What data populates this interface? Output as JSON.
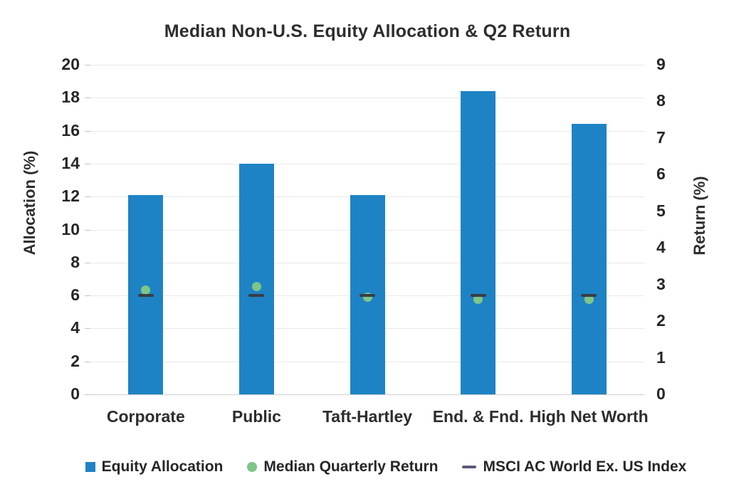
{
  "title": "Median Non-U.S. Equity Allocation & Q2 Return",
  "colors": {
    "bar_blue": "#1E83C5",
    "dot_green": "#7EC687",
    "dash_dark": "#3B3C42",
    "legend_dash_slate": "#5E5A78",
    "gridline": "#e9e9e9",
    "text": "#2d2d2d"
  },
  "chart_data": {
    "type": "bar",
    "title": "Median Non-U.S. Equity Allocation & Q2 Return",
    "categories": [
      "Corporate",
      "Public",
      "Taft-Hartley",
      "End. & Fnd.",
      "High Net Worth"
    ],
    "series": [
      {
        "name": "Equity Allocation",
        "type": "bar",
        "axis": "left",
        "values": [
          12.1,
          14.0,
          12.1,
          18.4,
          16.4
        ],
        "color": "#1E83C5"
      },
      {
        "name": "Median Quarterly Return",
        "type": "point",
        "axis": "right",
        "values": [
          2.85,
          2.95,
          2.65,
          2.6,
          2.6
        ],
        "color": "#7EC687"
      },
      {
        "name": "MSCI AC World Ex. US Index",
        "type": "dash",
        "axis": "right",
        "values": [
          2.7,
          2.7,
          2.7,
          2.7,
          2.7
        ],
        "color": "#3B3C42",
        "legend_color": "#5E5A78"
      }
    ],
    "left_axis": {
      "label": "Allocation (%)",
      "min": 0,
      "max": 20,
      "step": 2,
      "ticks": [
        20,
        18,
        16,
        14,
        12,
        10,
        8,
        6,
        4,
        2,
        0
      ]
    },
    "right_axis": {
      "label": "Return (%)",
      "min": 0,
      "max": 9,
      "step": 1,
      "ticks": [
        9,
        8,
        7,
        6,
        5,
        4,
        3,
        2,
        1,
        0
      ]
    },
    "grid": true,
    "legend_position": "bottom"
  }
}
